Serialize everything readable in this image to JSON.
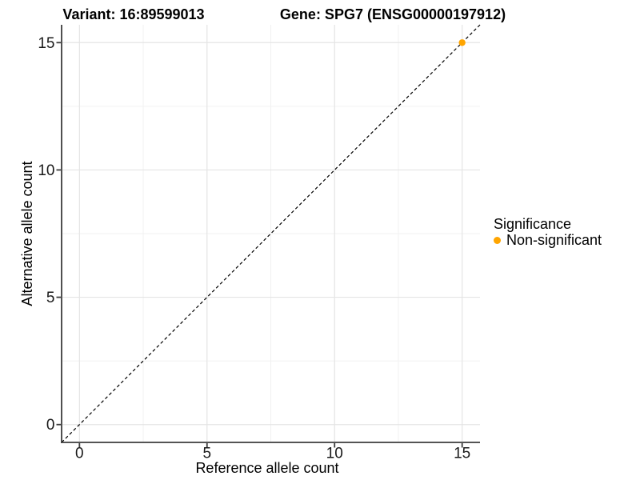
{
  "figure": {
    "background": "#FFFFFF"
  },
  "chart_data": {
    "type": "scatter",
    "titles": {
      "left": "Variant: 16:89599013",
      "right": "Gene: SPG7 (ENSG00000197912)"
    },
    "xlabel": "Reference allele count",
    "ylabel": "Alternative allele count",
    "xlim": [
      -0.7,
      15.7
    ],
    "ylim": [
      -0.7,
      15.7
    ],
    "x_ticks": [
      0,
      5,
      10,
      15
    ],
    "y_ticks": [
      0,
      5,
      10,
      15
    ],
    "x_minor_ticks": [
      2.5,
      7.5,
      12.5
    ],
    "y_minor_ticks": [
      2.5,
      7.5,
      12.5
    ],
    "grid": "major+minor",
    "points": [
      {
        "x": 15,
        "y": 15,
        "series": "Non-significant",
        "color": "#FFA500"
      }
    ],
    "reference_line": {
      "type": "identity",
      "slope": 1,
      "intercept": 0,
      "style": "dashed",
      "color": "#000000"
    },
    "legend": {
      "title": "Significance",
      "position": "right",
      "items": [
        {
          "label": "Non-significant",
          "color": "#FFA500"
        }
      ]
    },
    "colors": {
      "grid_major": "#E4E4E4",
      "grid_minor": "#F1F1F1",
      "axis_line": "#3D3D3D",
      "tick_label": "#1A1A1A"
    }
  }
}
